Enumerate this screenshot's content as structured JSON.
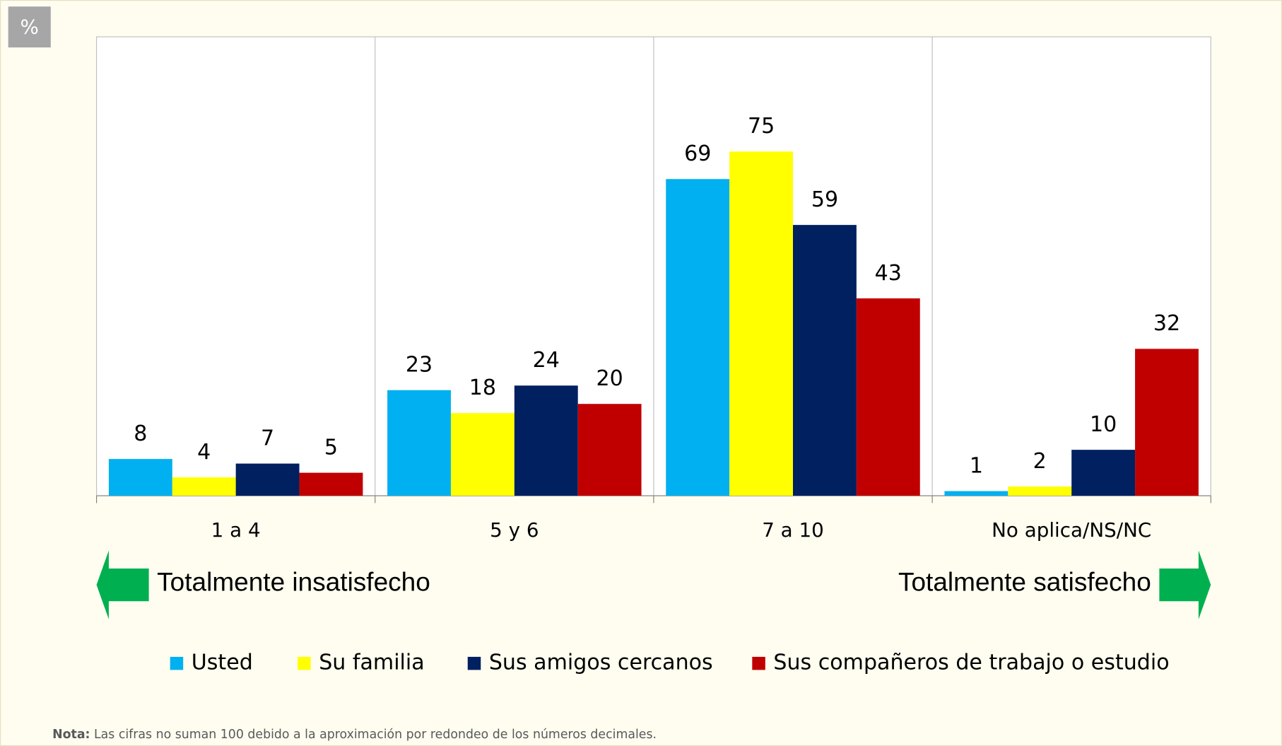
{
  "chart_data": {
    "type": "bar",
    "unit_label": "%",
    "categories": [
      "1 a 4",
      "5 y 6",
      "7 a 10",
      "No aplica/NS/NC"
    ],
    "series": [
      {
        "name": "Usted",
        "color": "#00b0f0",
        "values": [
          8,
          23,
          69,
          1
        ]
      },
      {
        "name": "Su familia",
        "color": "#ffff00",
        "values": [
          4,
          18,
          75,
          2
        ]
      },
      {
        "name": "Sus amigos cercanos",
        "color": "#002060",
        "values": [
          7,
          24,
          59,
          10
        ]
      },
      {
        "name": "Sus compañeros de trabajo o estudio",
        "color": "#c00000",
        "values": [
          5,
          20,
          43,
          32
        ]
      }
    ],
    "ylim": [
      0,
      100
    ],
    "annotations": {
      "left": "Totalmente insatisfecho",
      "right": "Totalmente satisfecho",
      "arrow_color": "#00b050"
    },
    "note": {
      "label": "Nota:",
      "text": "Las cifras no suman 100 debido a la aproximación por redondeo de los números decimales."
    }
  }
}
